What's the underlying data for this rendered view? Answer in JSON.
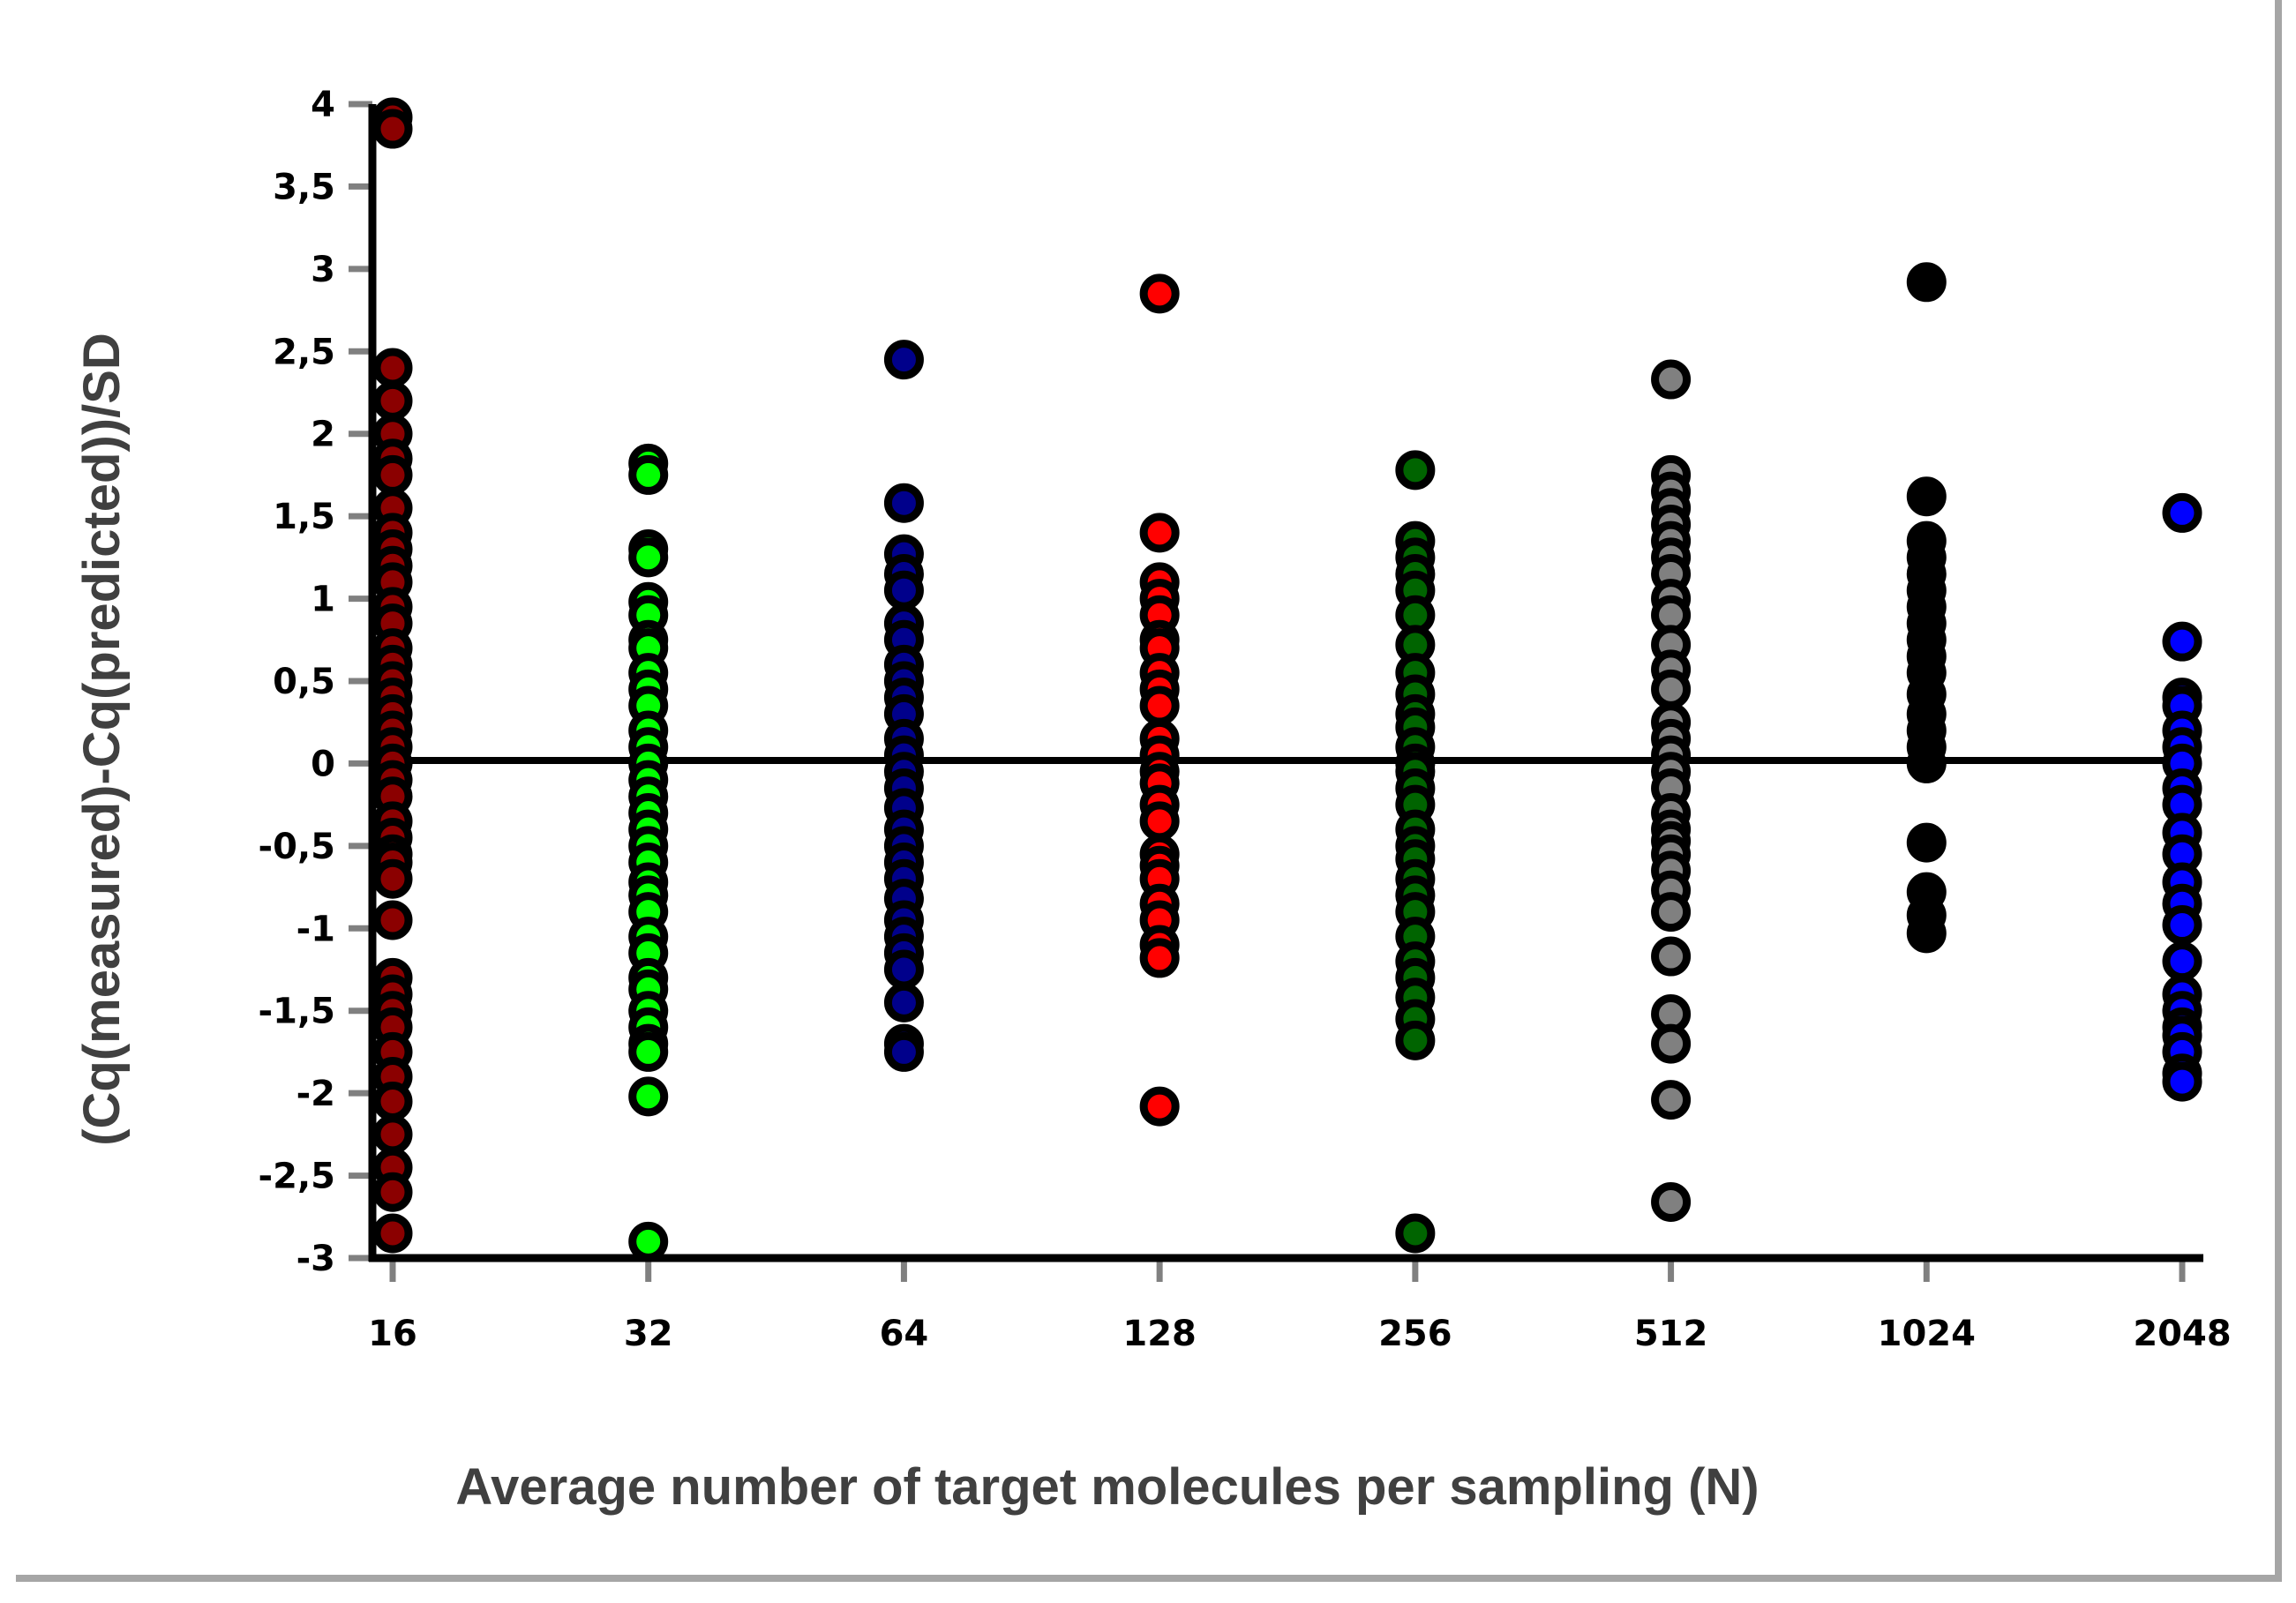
{
  "chart_data": {
    "type": "scatter",
    "xlabel": "Average number of target molecules per sampling (N)",
    "ylabel": "(Cq(measured)-Cq(predicted))/SD",
    "categories": [
      "16",
      "32",
      "64",
      "128",
      "256",
      "512",
      "1024",
      "2048"
    ],
    "yticks": [
      "4",
      "3,5",
      "3",
      "2,5",
      "2",
      "1,5",
      "1",
      "0,5",
      "0",
      "-0,5",
      "-1",
      "-1,5",
      "-2",
      "-2,5",
      "-3"
    ],
    "ylim": [
      -3,
      4
    ],
    "reference_line": 0,
    "grid": false,
    "series": [
      {
        "category": "16",
        "color": "#8b0000",
        "values": [
          3.92,
          3.85,
          2.4,
          2.2,
          2.0,
          1.85,
          1.75,
          1.55,
          1.4,
          1.3,
          1.2,
          1.1,
          0.95,
          0.85,
          0.7,
          0.6,
          0.5,
          0.4,
          0.3,
          0.2,
          0.1,
          0.0,
          -0.1,
          -0.2,
          -0.35,
          -0.45,
          -0.55,
          -0.6,
          -0.7,
          -0.95,
          -1.3,
          -1.4,
          -1.5,
          -1.6,
          -1.75,
          -1.9,
          -2.05,
          -2.25,
          -2.45,
          -2.6,
          -2.85
        ]
      },
      {
        "category": "32",
        "color": "#00ff00",
        "values": [
          1.82,
          1.75,
          1.3,
          1.25,
          0.98,
          0.9,
          0.75,
          0.7,
          0.55,
          0.45,
          0.35,
          0.2,
          0.1,
          0.0,
          -0.1,
          -0.2,
          -0.3,
          -0.4,
          -0.5,
          -0.6,
          -0.72,
          -0.8,
          -0.9,
          -1.05,
          -1.15,
          -1.3,
          -1.37,
          -1.5,
          -1.6,
          -1.7,
          -1.75,
          -2.02,
          -2.9
        ]
      },
      {
        "category": "64",
        "color": "#00008b",
        "values": [
          2.45,
          1.58,
          1.27,
          1.15,
          1.05,
          0.85,
          0.75,
          0.6,
          0.5,
          0.4,
          0.3,
          0.15,
          0.05,
          -0.05,
          -0.15,
          -0.27,
          -0.4,
          -0.5,
          -0.6,
          -0.7,
          -0.82,
          -0.95,
          -1.05,
          -1.15,
          -1.25,
          -1.45,
          -1.7,
          -1.75
        ]
      },
      {
        "category": "128",
        "color": "#ff0000",
        "values": [
          2.85,
          1.4,
          1.1,
          1.0,
          0.9,
          0.75,
          0.7,
          0.55,
          0.45,
          0.35,
          0.15,
          0.05,
          -0.05,
          -0.12,
          -0.25,
          -0.35,
          -0.55,
          -0.62,
          -0.7,
          -0.85,
          -0.95,
          -1.1,
          -1.18,
          -2.08
        ]
      },
      {
        "category": "256",
        "color": "#006400",
        "values": [
          1.78,
          1.35,
          1.25,
          1.15,
          1.05,
          0.9,
          0.72,
          0.55,
          0.42,
          0.3,
          0.22,
          0.1,
          0.0,
          -0.05,
          -0.15,
          -0.25,
          -0.4,
          -0.5,
          -0.58,
          -0.7,
          -0.8,
          -0.9,
          -1.05,
          -1.2,
          -1.3,
          -1.42,
          -1.55,
          -1.68,
          -2.85
        ]
      },
      {
        "category": "512",
        "color": "#808080",
        "values": [
          2.33,
          1.75,
          1.65,
          1.55,
          1.45,
          1.35,
          1.25,
          1.15,
          1.0,
          0.9,
          0.72,
          0.57,
          0.45,
          0.25,
          0.15,
          0.05,
          -0.05,
          -0.15,
          -0.3,
          -0.4,
          -0.47,
          -0.55,
          -0.65,
          -0.77,
          -0.9,
          -1.17,
          -1.52,
          -1.7,
          -2.04,
          -2.66
        ]
      },
      {
        "category": "1024",
        "color": "#000000",
        "values": [
          2.92,
          1.62,
          1.35,
          1.25,
          1.15,
          1.05,
          0.95,
          0.85,
          0.75,
          0.65,
          0.55,
          0.42,
          0.3,
          0.2,
          0.1,
          0.0,
          -0.48,
          -0.78,
          -0.92,
          -1.03
        ]
      },
      {
        "category": "2048",
        "color": "#0000ff",
        "values": [
          1.52,
          0.74,
          0.4,
          0.35,
          0.2,
          0.1,
          0.0,
          -0.15,
          -0.25,
          -0.42,
          -0.55,
          -0.72,
          -0.85,
          -0.98,
          -1.2,
          -1.4,
          -1.5,
          -1.6,
          -1.65,
          -1.75,
          -1.88,
          -1.93
        ]
      }
    ]
  }
}
